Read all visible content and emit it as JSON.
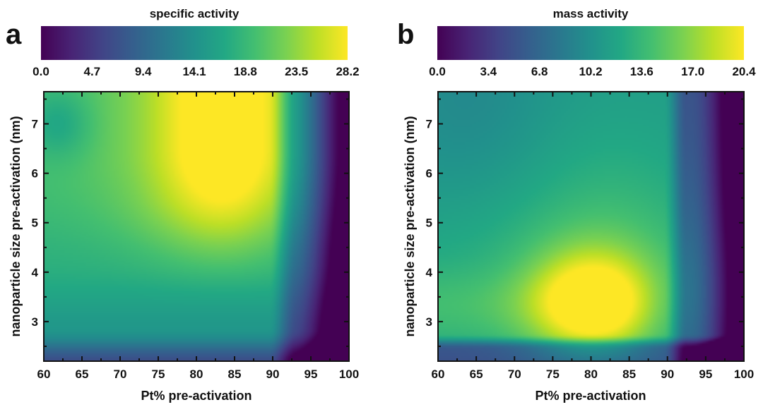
{
  "chart_data": [
    {
      "type": "heatmap",
      "panel_label": "a",
      "colorbar": {
        "title": "specific activity",
        "ticks": [
          "0.0",
          "4.7",
          "9.4",
          "14.1",
          "18.8",
          "23.5",
          "28.2"
        ],
        "range": [
          0.0,
          28.2
        ],
        "colormap": "viridis"
      },
      "xlabel": "Pt% pre-activation",
      "ylabel": "nanoparticle size pre-activation (nm)",
      "xticks": [
        "60",
        "65",
        "70",
        "75",
        "80",
        "85",
        "90",
        "95",
        "100"
      ],
      "yticks": [
        "3",
        "4",
        "5",
        "6",
        "7"
      ],
      "xlim": [
        60,
        100
      ],
      "ylim": [
        2.2,
        7.65
      ],
      "description_of_field": "high values in center-upper region around 80-88% Pt and sizes 5-7.6 nm; low near 100% Pt and small sizes"
    },
    {
      "type": "heatmap",
      "panel_label": "b",
      "colorbar": {
        "title": "mass activity",
        "ticks": [
          "0.0",
          "3.4",
          "6.8",
          "10.2",
          "13.6",
          "17.0",
          "20.4"
        ],
        "range": [
          0.0,
          20.4
        ],
        "colormap": "viridis"
      },
      "xlabel": "Pt% pre-activation",
      "ylabel": "nanoparticle size pre-activation (nm)",
      "xticks": [
        "60",
        "65",
        "70",
        "75",
        "80",
        "85",
        "90",
        "95",
        "100"
      ],
      "yticks": [
        "3",
        "4",
        "5",
        "6",
        "7"
      ],
      "xlim": [
        60,
        100
      ],
      "ylim": [
        2.2,
        7.65
      ],
      "description_of_field": "peak around 80% Pt and 3-3.5 nm; low near 100% Pt and below 2.6 nm"
    }
  ]
}
